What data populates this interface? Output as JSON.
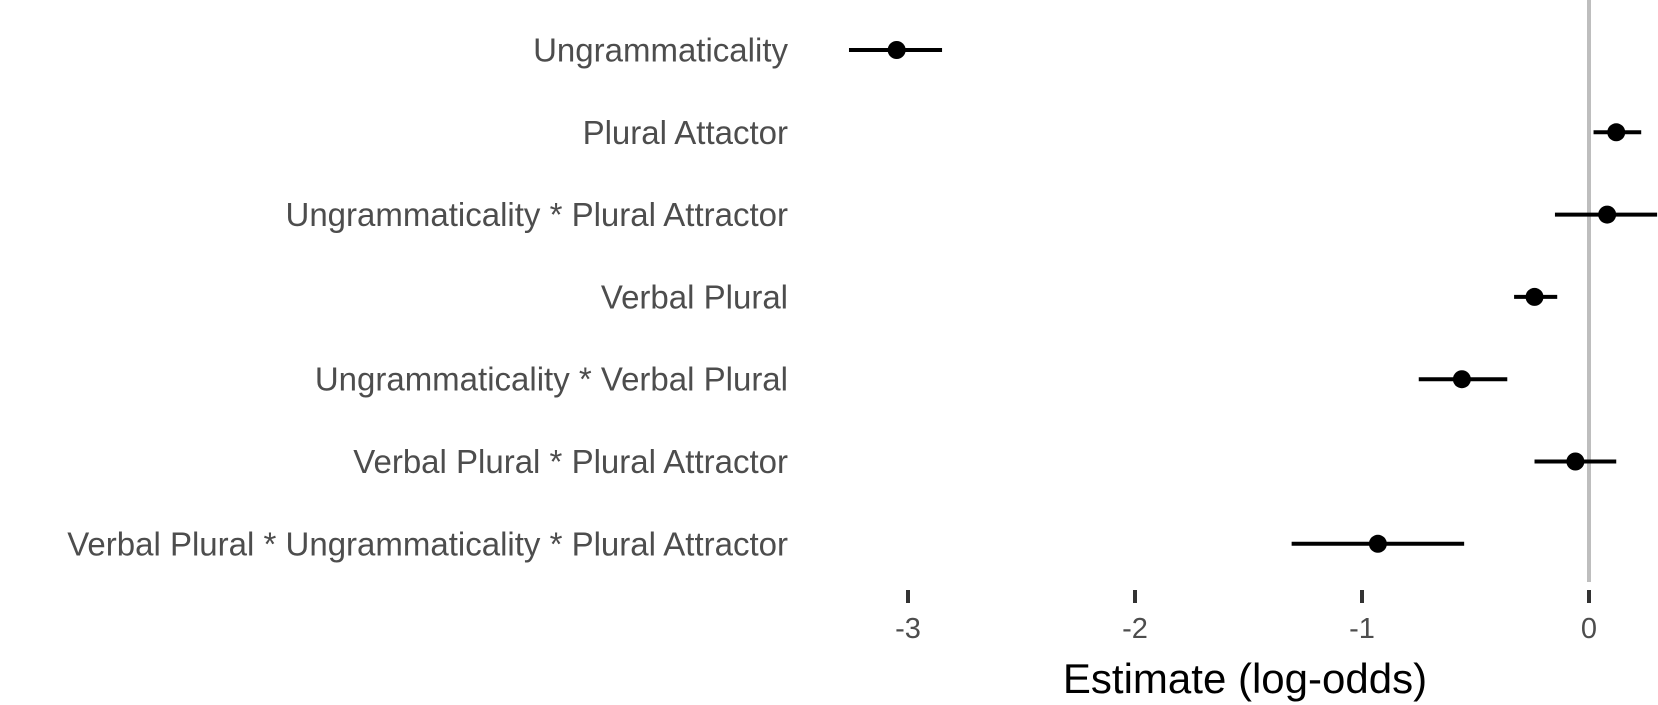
{
  "chart_data": {
    "type": "scatter",
    "subtype": "coefficient-plot",
    "title": "",
    "xlabel": "Estimate (log-odds)",
    "ylabel": "",
    "xlim": [
      -3.4,
      0.3
    ],
    "x_ticks": [
      {
        "value": -3,
        "label": "-3"
      },
      {
        "value": -2,
        "label": "-2"
      },
      {
        "value": -1,
        "label": "-1"
      },
      {
        "value": 0,
        "label": "0"
      }
    ],
    "reference_line": 0,
    "grid": false,
    "colors": {
      "points": "#000000",
      "reference_line": "#bebebe",
      "labels": "#4d4d4d"
    },
    "terms": [
      {
        "label": "Ungrammaticality",
        "estimate": -3.05,
        "lower": -3.26,
        "upper": -2.85
      },
      {
        "label": "Plural Attactor",
        "estimate": 0.12,
        "lower": 0.02,
        "upper": 0.23
      },
      {
        "label": "Ungrammaticality * Plural Attractor",
        "estimate": 0.08,
        "lower": -0.15,
        "upper": 0.3
      },
      {
        "label": "Verbal Plural",
        "estimate": -0.24,
        "lower": -0.33,
        "upper": -0.14
      },
      {
        "label": "Ungrammaticality * Verbal Plural",
        "estimate": -0.56,
        "lower": -0.75,
        "upper": -0.36
      },
      {
        "label": "Verbal Plural * Plural Attractor",
        "estimate": -0.06,
        "lower": -0.24,
        "upper": 0.12
      },
      {
        "label": "Verbal Plural * Ungrammaticality * Plural Attractor",
        "estimate": -0.93,
        "lower": -1.31,
        "upper": -0.55
      }
    ]
  }
}
